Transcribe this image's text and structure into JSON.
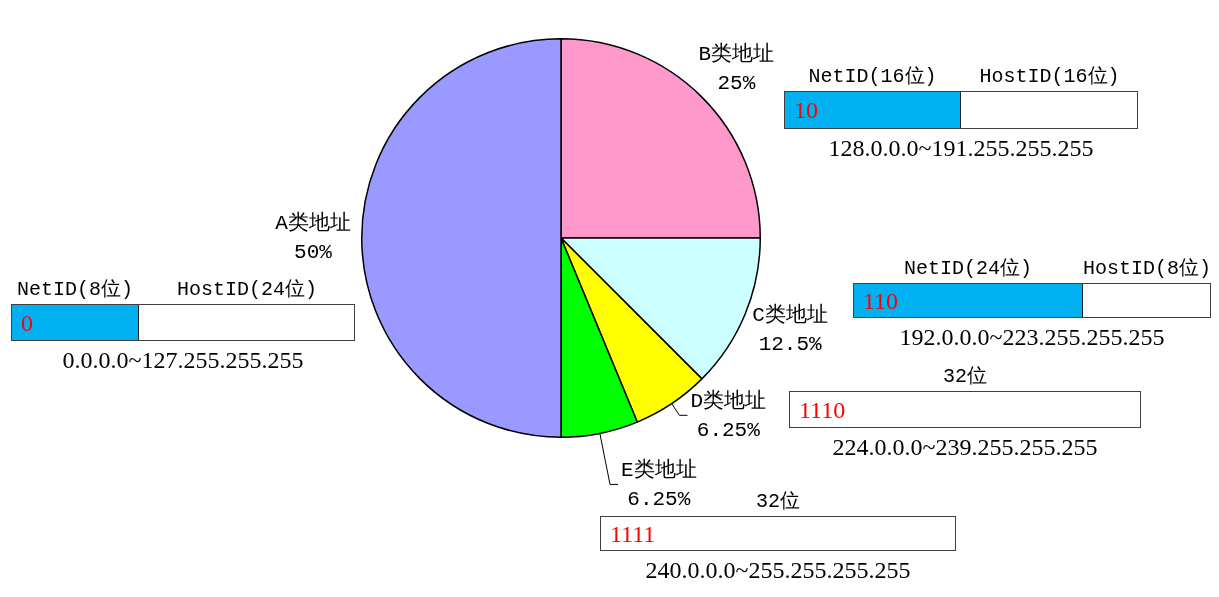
{
  "chart_data": {
    "type": "pie",
    "categories": [
      "B类地址",
      "C类地址",
      "D类地址",
      "E类地址",
      "A类地址"
    ],
    "values": [
      25,
      12.5,
      6.25,
      6.25,
      50
    ],
    "colors": [
      "#ff99cc",
      "#ccffff",
      "#ffff00",
      "#00ff00",
      "#9999ff"
    ],
    "value_labels": [
      "25%",
      "12.5%",
      "6.25%",
      "6.25%",
      "50%"
    ],
    "annotations": [
      "NetID(16位)",
      "HostID(16位)",
      "10",
      "128.0.0.0~191.255.255.255",
      "NetID(8位)",
      "HostID(24位)",
      "0",
      "0.0.0.0~127.255.255.255",
      "NetID(24位)",
      "HostID(8位)",
      "110",
      "192.0.0.0~223.255.255.255",
      "32位",
      "1110",
      "224.0.0.0~239.255.255.255",
      "32位",
      "1111",
      "240.0.0.0~255.255.255.255"
    ]
  }
}
